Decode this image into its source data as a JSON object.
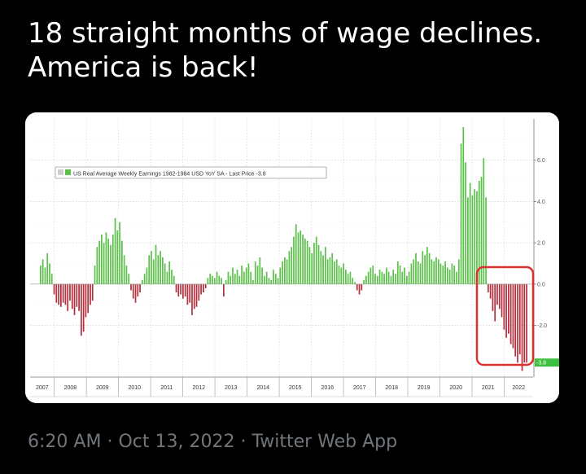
{
  "tweet": {
    "text": "18 straight months of wage declines. America is back!",
    "time": "6:20 AM",
    "date": "Oct 13, 2022",
    "source": "Twitter Web App",
    "separator": "·"
  },
  "colors": {
    "positive": "#5cc14a",
    "negative": "#b3303f",
    "highlight": "#d9322e",
    "last_price_badge": "#3fbf3f"
  },
  "chart_data": {
    "type": "bar",
    "legend": "US Real Average Weekly Earnings 1982-1984 USD YoY SA - Last Price -3.8",
    "legend_placement": "top-left",
    "last_price_label": "-3.8",
    "last_price": -3.8,
    "ylim": [
      -4.5,
      8.0
    ],
    "y_ticks": [
      {
        "value": 6.0,
        "label": "6.0"
      },
      {
        "value": 4.0,
        "label": "4.0"
      },
      {
        "value": 2.0,
        "label": "2.0"
      },
      {
        "value": 0.0,
        "label": "0.0"
      },
      {
        "value": -2.0,
        "label": "-2.0"
      }
    ],
    "x_start": 2007.25,
    "x_end": 2022.9,
    "x_ticks": [
      "2007",
      "2008",
      "2009",
      "2010",
      "2011",
      "2012",
      "2013",
      "2014",
      "2015",
      "2016",
      "2017",
      "2018",
      "2019",
      "2020",
      "2021",
      "2022"
    ],
    "grid": true,
    "values": [
      0.9,
      1.2,
      0.8,
      1.5,
      1.0,
      0.5,
      -0.5,
      -0.9,
      -1.0,
      -1.1,
      -0.9,
      -1.0,
      -1.3,
      -0.8,
      -1.2,
      -1.5,
      -1.1,
      -1.3,
      -2.5,
      -2.3,
      -1.6,
      -1.4,
      -1.0,
      -0.8,
      0.9,
      1.8,
      2.1,
      2.4,
      2.0,
      2.5,
      2.2,
      1.9,
      2.4,
      3.2,
      2.6,
      3.0,
      2.1,
      1.4,
      0.9,
      0.5,
      -0.3,
      -0.7,
      -0.9,
      -0.6,
      -0.4,
      0.2,
      0.5,
      0.8,
      1.4,
      1.6,
      1.2,
      1.9,
      1.4,
      1.6,
      1.3,
      1.0,
      0.6,
      1.1,
      0.7,
      0.4,
      -0.4,
      -0.6,
      -0.5,
      -0.7,
      -0.6,
      -1.0,
      -0.9,
      -1.5,
      -1.2,
      -1.1,
      -0.8,
      -0.5,
      -0.4,
      -0.2,
      0.3,
      0.5,
      0.4,
      0.3,
      0.6,
      0.4,
      0.3,
      -0.6,
      0.2,
      0.6,
      0.4,
      0.8,
      0.5,
      0.7,
      0.4,
      0.9,
      0.6,
      0.8,
      1.0,
      0.6,
      0.2,
      1.1,
      0.9,
      1.3,
      0.8,
      0.4,
      0.6,
      0.3,
      0.2,
      0.7,
      0.5,
      0.3,
      0.8,
      1.1,
      1.3,
      1.2,
      1.6,
      1.8,
      2.3,
      2.9,
      2.5,
      2.6,
      2.4,
      2.2,
      2.1,
      1.8,
      1.5,
      2.0,
      2.3,
      1.9,
      1.6,
      1.4,
      1.8,
      1.2,
      1.3,
      1.5,
      1.1,
      1.2,
      0.9,
      0.8,
      1.0,
      0.7,
      0.5,
      0.6,
      0.3,
      0.1,
      -0.3,
      -0.5,
      -0.3,
      0.2,
      0.4,
      0.6,
      0.8,
      0.9,
      0.5,
      0.4,
      0.7,
      0.6,
      0.5,
      0.8,
      0.6,
      0.4,
      0.7,
      0.5,
      1.1,
      0.9,
      0.6,
      0.8,
      0.4,
      0.6,
      1.0,
      1.2,
      1.5,
      1.1,
      1.0,
      1.6,
      1.4,
      1.8,
      1.5,
      1.2,
      1.1,
      1.3,
      1.2,
      1.0,
      0.9,
      1.1,
      0.8,
      0.7,
      1.0,
      0.9,
      0.6,
      1.2,
      6.8,
      7.6,
      5.9,
      4.2,
      4.9,
      4.3,
      4.6,
      4.5,
      5.0,
      5.2,
      6.1,
      4.2,
      -0.4,
      -0.7,
      -1.3,
      -1.8,
      -1.0,
      -1.2,
      -1.6,
      -2.2,
      -2.6,
      -2.4,
      -2.9,
      -3.1,
      -3.5,
      -3.8,
      -3.4,
      -4.2,
      -3.8,
      -3.8
    ]
  }
}
